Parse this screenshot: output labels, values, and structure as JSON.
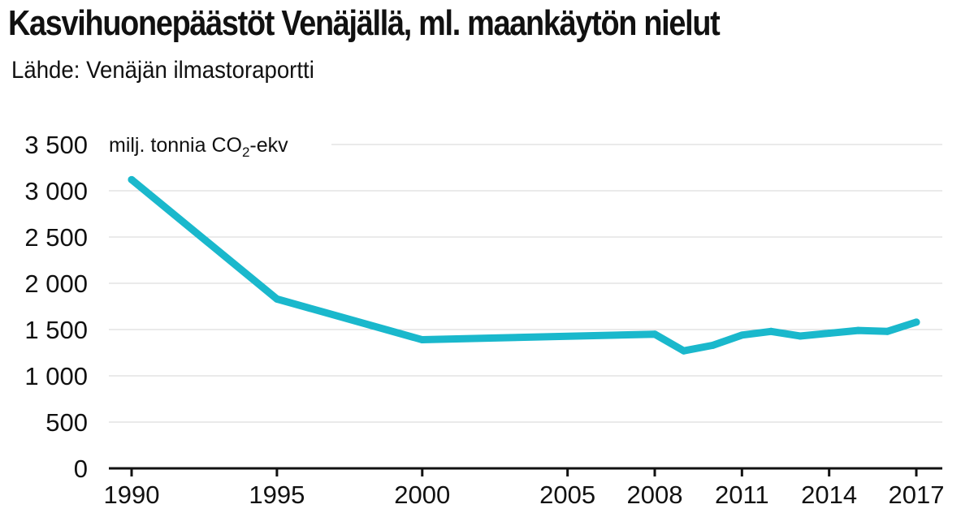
{
  "title": "Kasvihuonepäästöt Venäjällä, ml. maankäytön nielut",
  "subtitle": "Lähde: Venäjän ilmastoraportti",
  "chart_data": {
    "type": "line",
    "title": "Kasvihuonepäästöt Venäjällä, ml. maankäytön nielut",
    "subtitle": "Lähde: Venäjän ilmastoraportti",
    "unit_label": {
      "prefix": "milj. tonnia CO",
      "subscript": "2",
      "suffix": "-ekv"
    },
    "ylim": [
      0,
      3500
    ],
    "xlim": [
      1990,
      2017
    ],
    "y_ticks": [
      "3 500",
      "3 000",
      "2 500",
      "2 000",
      "1 500",
      "1 000",
      "500",
      "0"
    ],
    "y_tick_values": [
      3500,
      3000,
      2500,
      2000,
      1500,
      1000,
      500,
      0
    ],
    "x_ticks": [
      "1990",
      "1995",
      "2000",
      "2005",
      "2008",
      "2011",
      "2014",
      "2017"
    ],
    "x_tick_values": [
      1990,
      1995,
      2000,
      2005,
      2008,
      2011,
      2014,
      2017
    ],
    "grid": true,
    "line_color": "#1ab8cc",
    "series": [
      {
        "x": [
          1990,
          1995,
          2000,
          2008,
          2009,
          2010,
          2011,
          2012,
          2013,
          2014,
          2015,
          2016,
          2017
        ],
        "values": [
          3120,
          1830,
          1390,
          1450,
          1270,
          1330,
          1440,
          1480,
          1430,
          1460,
          1490,
          1480,
          1580
        ]
      }
    ]
  }
}
